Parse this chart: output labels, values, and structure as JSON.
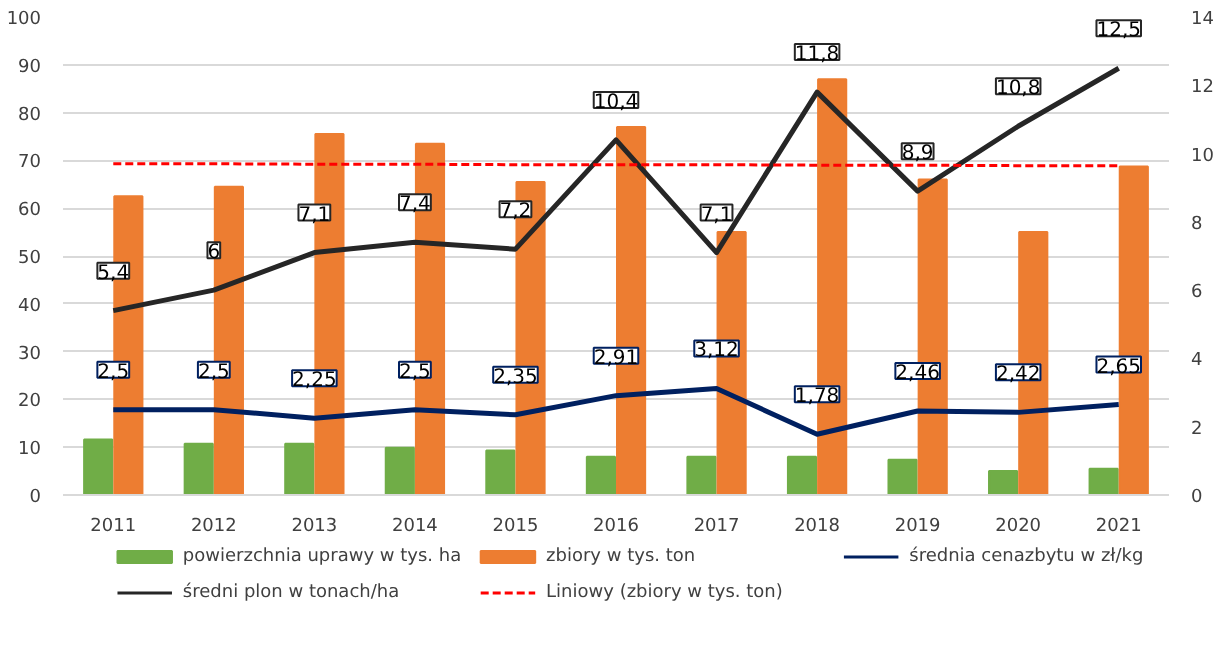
{
  "chart_data": {
    "type": "bar",
    "categories": [
      "2011",
      "2012",
      "2013",
      "2014",
      "2015",
      "2016",
      "2017",
      "2018",
      "2019",
      "2020",
      "2021"
    ],
    "ylim": [
      0,
      100
    ],
    "yticks": [
      0,
      10,
      20,
      30,
      40,
      50,
      60,
      70,
      80,
      90,
      100
    ],
    "y2lim": [
      0,
      14
    ],
    "y2ticks": [
      0,
      2,
      4,
      6,
      8,
      10,
      12,
      14
    ],
    "grid": "y",
    "legend": "bottom",
    "series": [
      {
        "name": "powierzchnia uprawy w tys. ha",
        "color": "#70ad47",
        "values": [
          11.6,
          10.7,
          10.7,
          9.9,
          9.3,
          8,
          8,
          8,
          7.4,
          5,
          5.5
        ]
      },
      {
        "name": "zbiory w tys. ton",
        "color": "#ed7d31",
        "values": [
          62.5,
          64.5,
          75.5,
          73.5,
          65.5,
          77,
          55,
          87,
          66,
          55,
          68.7
        ]
      },
      {
        "name": "średnia cenazbytu w zł/kg",
        "type": "line",
        "axis": "y2",
        "color": "#002060",
        "line_style": "solid",
        "values": [
          2.5,
          2.5,
          2.25,
          2.5,
          2.35,
          2.91,
          3.12,
          1.78,
          2.46,
          2.42,
          2.65
        ],
        "value_labels": [
          "2,5",
          "2,5",
          "2,25",
          "2,5",
          "2,35",
          "2,91",
          "3,12",
          "1,78",
          "2,46",
          "2,42",
          "2,65"
        ]
      },
      {
        "name": "średni plon w tonach/ha",
        "type": "line",
        "axis": "y2",
        "color": "#262626",
        "line_style": "solid",
        "values": [
          5.4,
          6,
          7.1,
          7.4,
          7.2,
          10.4,
          7.1,
          11.8,
          8.9,
          10.8,
          12.5
        ],
        "value_labels": [
          "5,4",
          "6",
          "7,1",
          "7,4",
          "7,2",
          "10,4",
          "7,1",
          "11,8",
          "8,9",
          "10,8",
          "12,5"
        ]
      },
      {
        "name": "Liniowy (zbiory w tys. ton)",
        "type": "line",
        "color": "#ff0000",
        "line_style": "dashed",
        "values": [
          69.3,
          69.3,
          69.2,
          69.2,
          69.1,
          69.1,
          69.1,
          69.0,
          69.0,
          68.9,
          68.9
        ]
      }
    ]
  }
}
